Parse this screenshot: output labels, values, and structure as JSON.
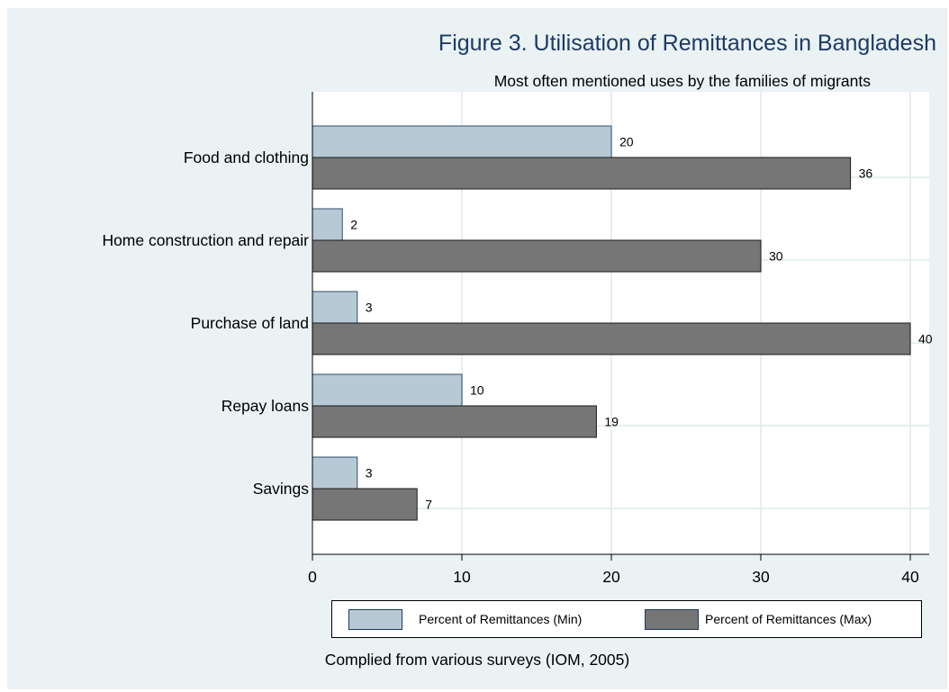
{
  "chart_data": {
    "type": "bar",
    "orientation": "horizontal",
    "title": "Figure 3. Utilisation of Remittances in Bangladesh",
    "subtitle": "Most often mentioned uses by the families of migrants",
    "caption": "Complied from various surveys (IOM, 2005)",
    "categories": [
      "Food and clothing",
      "Home construction and repair",
      "Purchase of land",
      "Repay loans",
      "Savings"
    ],
    "series": [
      {
        "name": "Percent of Remittances (Min)",
        "values": [
          20,
          2,
          3,
          10,
          3
        ],
        "color": "#b8c9d6"
      },
      {
        "name": "Percent of Remittances (Max)",
        "values": [
          36,
          30,
          40,
          19,
          7
        ],
        "color": "#767676"
      }
    ],
    "xlim": [
      0,
      41
    ],
    "xticks": [
      0,
      10,
      20,
      30,
      40
    ],
    "grid": true,
    "legend_position": "bottom",
    "plot_background": "#ffffff",
    "figure_background": "#eaf2f3",
    "gridline_color": "#e6eff0"
  }
}
